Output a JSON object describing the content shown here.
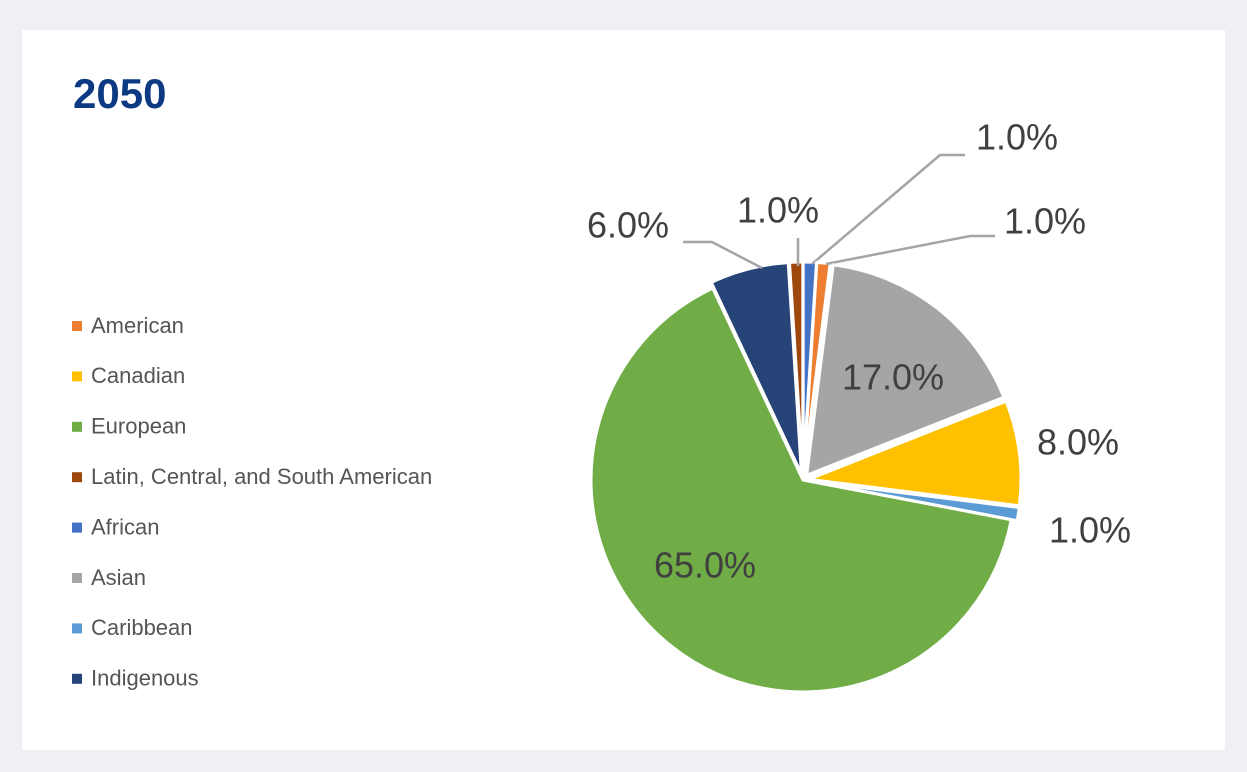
{
  "chart_data": {
    "type": "pie",
    "title": "2050",
    "categories": [
      "American",
      "Canadian",
      "European",
      "Latin, Central, and South American",
      "African",
      "Asian",
      "Caribbean",
      "Indigenous"
    ],
    "values": [
      1.0,
      8.0,
      65.0,
      1.0,
      1.0,
      17.0,
      1.0,
      6.0
    ],
    "value_labels": [
      "1.0%",
      "8.0%",
      "65.0%",
      "1.0%",
      "1.0%",
      "17.0%",
      "1.0%",
      "6.0%"
    ],
    "colors": [
      "#ed7d31",
      "#ffc000",
      "#70ad47",
      "#9e480e",
      "#4472c4",
      "#a5a5a5",
      "#5b9bd5",
      "#264478"
    ],
    "legend": "left"
  }
}
